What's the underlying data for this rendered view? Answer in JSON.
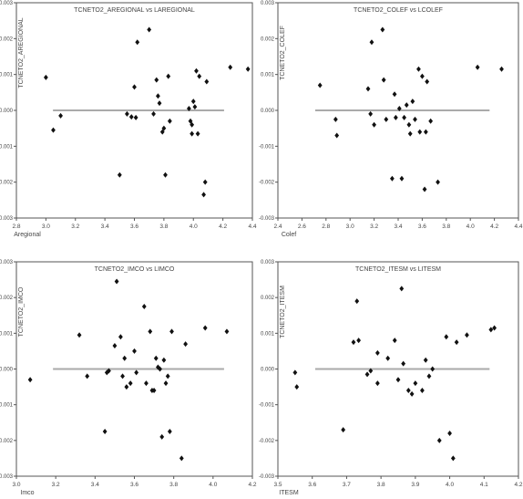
{
  "chart_data": [
    {
      "type": "scatter",
      "title": "TCNETO2_AREGIONAL vs LAREGIONAL",
      "xlabel": "Aregional",
      "ylabel": "TCNETO2_AREGIONAL",
      "xlim": [
        2.8,
        4.4
      ],
      "ylim": [
        -0.003,
        0.003
      ],
      "x_ticks": [
        "2.8",
        "3.0",
        "3.2",
        "3.4",
        "3.6",
        "3.8",
        "4.0",
        "4.2",
        "4.4"
      ],
      "y_ticks": [
        "-0.003",
        "-0.002",
        "-0.001",
        "0.000",
        "0.001",
        "0.002",
        "0.003"
      ],
      "reference_line_y": 0.0,
      "points": [
        [
          3.0,
          0.00092
        ],
        [
          3.05,
          -0.00055
        ],
        [
          3.1,
          -0.00015
        ],
        [
          3.5,
          -0.0018
        ],
        [
          3.55,
          -0.0001
        ],
        [
          3.58,
          -0.00018
        ],
        [
          3.6,
          0.00065
        ],
        [
          3.61,
          -0.0002
        ],
        [
          3.62,
          0.0019
        ],
        [
          3.7,
          0.00225
        ],
        [
          3.73,
          -0.0001
        ],
        [
          3.75,
          0.00085
        ],
        [
          3.76,
          0.0004
        ],
        [
          3.77,
          0.0002
        ],
        [
          3.79,
          -0.0006
        ],
        [
          3.8,
          -0.0005
        ],
        [
          3.81,
          -0.0018
        ],
        [
          3.83,
          0.00095
        ],
        [
          3.84,
          -0.0003
        ],
        [
          3.97,
          5e-05
        ],
        [
          3.98,
          -0.0003
        ],
        [
          3.99,
          -0.0004
        ],
        [
          3.99,
          -0.00065
        ],
        [
          4.0,
          0.00025
        ],
        [
          4.01,
          0.0001
        ],
        [
          4.02,
          0.0011
        ],
        [
          4.03,
          -0.00065
        ],
        [
          4.04,
          0.00095
        ],
        [
          4.07,
          -0.00235
        ],
        [
          4.08,
          -0.002
        ],
        [
          4.09,
          0.0008
        ],
        [
          4.25,
          0.0012
        ],
        [
          4.37,
          0.00115
        ]
      ]
    },
    {
      "type": "scatter",
      "title": "TCNETO2_COLEF vs LCOLEF",
      "xlabel": "Colef",
      "ylabel": "TCNETO2_COLEF",
      "xlim": [
        2.4,
        4.4
      ],
      "ylim": [
        -0.003,
        0.003
      ],
      "x_ticks": [
        "2.4",
        "2.6",
        "2.8",
        "3.0",
        "3.2",
        "3.4",
        "3.6",
        "3.8",
        "4.0",
        "4.2",
        "4.4"
      ],
      "y_ticks": [
        "-0.003",
        "-0.002",
        "-0.001",
        "0.000",
        "0.001",
        "0.002",
        "0.003"
      ],
      "reference_line_y": 0.0,
      "points": [
        [
          2.75,
          0.0007
        ],
        [
          2.88,
          -0.00025
        ],
        [
          2.89,
          -0.0007
        ],
        [
          3.15,
          0.0006
        ],
        [
          3.17,
          -0.0001
        ],
        [
          3.18,
          0.0019
        ],
        [
          3.2,
          -0.0004
        ],
        [
          3.27,
          0.00225
        ],
        [
          3.28,
          0.00085
        ],
        [
          3.3,
          -0.00025
        ],
        [
          3.35,
          -0.0019
        ],
        [
          3.37,
          0.00045
        ],
        [
          3.38,
          -0.0002
        ],
        [
          3.41,
          5e-05
        ],
        [
          3.43,
          -0.0019
        ],
        [
          3.45,
          -0.0002
        ],
        [
          3.47,
          0.00015
        ],
        [
          3.49,
          -0.0004
        ],
        [
          3.5,
          -0.00065
        ],
        [
          3.52,
          0.00025
        ],
        [
          3.54,
          -0.00025
        ],
        [
          3.57,
          0.00115
        ],
        [
          3.58,
          -0.0006
        ],
        [
          3.6,
          0.00095
        ],
        [
          3.62,
          -0.0022
        ],
        [
          3.63,
          -0.0006
        ],
        [
          3.64,
          0.0008
        ],
        [
          3.67,
          -0.0003
        ],
        [
          3.73,
          -0.002
        ],
        [
          4.06,
          0.0012
        ],
        [
          4.26,
          0.00115
        ]
      ]
    },
    {
      "type": "scatter",
      "title": "TCNETO2_IMCO vs LIMCO",
      "xlabel": "Imco",
      "ylabel": "TCNETO2_IMCO",
      "xlim": [
        3.0,
        4.2
      ],
      "ylim": [
        -0.003,
        0.003
      ],
      "x_ticks": [
        "3.0",
        "3.2",
        "3.4",
        "3.6",
        "3.8",
        "4.0",
        "4.2"
      ],
      "y_ticks": [
        "-0.003",
        "-0.002",
        "-0.001",
        "0.000",
        "0.001",
        "0.002",
        "0.003"
      ],
      "reference_line_y": 0.0,
      "points": [
        [
          3.07,
          -0.0003
        ],
        [
          3.32,
          0.00095
        ],
        [
          3.36,
          -0.0002
        ],
        [
          3.45,
          -0.00175
        ],
        [
          3.46,
          -0.0001
        ],
        [
          3.47,
          -5e-05
        ],
        [
          3.5,
          0.00065
        ],
        [
          3.51,
          0.00245
        ],
        [
          3.53,
          0.0009
        ],
        [
          3.54,
          -0.0002
        ],
        [
          3.55,
          0.0003
        ],
        [
          3.56,
          -0.0005
        ],
        [
          3.58,
          -0.0004
        ],
        [
          3.6,
          0.0005
        ],
        [
          3.61,
          -0.0001
        ],
        [
          3.65,
          0.00175
        ],
        [
          3.66,
          -0.0004
        ],
        [
          3.68,
          0.00105
        ],
        [
          3.69,
          -0.0006
        ],
        [
          3.7,
          -0.0006
        ],
        [
          3.71,
          0.0003
        ],
        [
          3.72,
          5e-05
        ],
        [
          3.73,
          0.0
        ],
        [
          3.74,
          -0.0019
        ],
        [
          3.75,
          0.00025
        ],
        [
          3.76,
          -0.0004
        ],
        [
          3.77,
          -0.0002
        ],
        [
          3.78,
          -0.00175
        ],
        [
          3.79,
          0.00105
        ],
        [
          3.84,
          -0.0025
        ],
        [
          3.86,
          0.0007
        ],
        [
          3.96,
          0.00115
        ],
        [
          4.07,
          0.00105
        ]
      ]
    },
    {
      "type": "scatter",
      "title": "TCNETO2_ITESM vs LITESM",
      "xlabel": "ITESM",
      "ylabel": "TCNETO2_ITESM",
      "xlim": [
        3.5,
        4.2
      ],
      "ylim": [
        -0.003,
        0.003
      ],
      "x_ticks": [
        "3.5",
        "3.6",
        "3.7",
        "3.8",
        "3.9",
        "4.0",
        "4.1",
        "4.2"
      ],
      "y_ticks": [
        "-0.003",
        "-0.002",
        "-0.001",
        "0.000",
        "0.001",
        "0.002",
        "0.003"
      ],
      "reference_line_y": 0.0,
      "points": [
        [
          3.55,
          -0.0001
        ],
        [
          3.555,
          -0.0005
        ],
        [
          3.69,
          -0.0017
        ],
        [
          3.72,
          0.00075
        ],
        [
          3.73,
          0.0019
        ],
        [
          3.735,
          0.0008
        ],
        [
          3.76,
          -0.00015
        ],
        [
          3.77,
          -5e-05
        ],
        [
          3.79,
          0.00045
        ],
        [
          3.79,
          -0.0004
        ],
        [
          3.82,
          0.0003
        ],
        [
          3.84,
          0.0008
        ],
        [
          3.85,
          -0.0003
        ],
        [
          3.86,
          0.00225
        ],
        [
          3.865,
          0.00015
        ],
        [
          3.88,
          -0.0006
        ],
        [
          3.89,
          -0.0007
        ],
        [
          3.9,
          -0.0004
        ],
        [
          3.92,
          -0.0006
        ],
        [
          3.93,
          0.00025
        ],
        [
          3.94,
          -0.0002
        ],
        [
          3.95,
          0.0
        ],
        [
          3.97,
          -0.002
        ],
        [
          3.99,
          0.0009
        ],
        [
          4.0,
          -0.0018
        ],
        [
          4.01,
          -0.0025
        ],
        [
          4.02,
          0.00075
        ],
        [
          4.05,
          0.00095
        ],
        [
          4.12,
          0.0011
        ],
        [
          4.13,
          0.00115
        ]
      ]
    }
  ]
}
